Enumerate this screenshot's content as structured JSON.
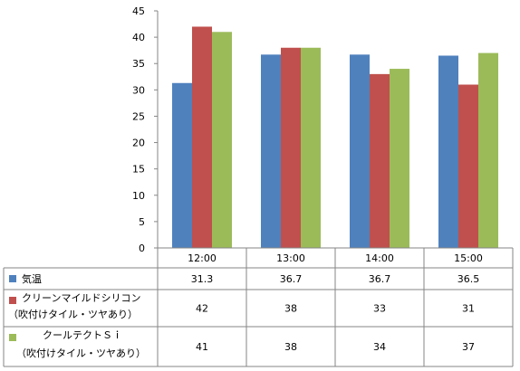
{
  "chart_data": {
    "type": "bar",
    "categories": [
      "12:00",
      "13:00",
      "14:00",
      "15:00"
    ],
    "ylim": [
      0,
      45
    ],
    "yticks": [
      0,
      5,
      10,
      15,
      20,
      25,
      30,
      35,
      40,
      45
    ],
    "grid": false,
    "legend": "data-table",
    "series": [
      {
        "name": "気温",
        "label_lines": [
          "気温"
        ],
        "color": "#4F81BD",
        "values": [
          31.3,
          36.7,
          36.7,
          36.5
        ],
        "display_values": [
          "31.3",
          "36.7",
          "36.7",
          "36.5"
        ]
      },
      {
        "name": "クリーンマイルドシリコン（吹付けタイル・ツヤあり）",
        "label_lines": [
          "クリーンマイルドシリコン",
          "（吹付けタイル・ツヤあり）"
        ],
        "color": "#C0504D",
        "values": [
          42,
          38,
          33,
          31
        ],
        "display_values": [
          "42",
          "38",
          "33",
          "31"
        ]
      },
      {
        "name": "クールテクトＳｉ（吹付けタイル・ツヤあり）",
        "label_lines": [
          "クールテクトＳｉ",
          "（吹付けタイル・ツヤあり）"
        ],
        "color": "#9BBB59",
        "values": [
          41,
          38,
          34,
          37
        ],
        "display_values": [
          "41",
          "38",
          "34",
          "37"
        ]
      }
    ]
  }
}
